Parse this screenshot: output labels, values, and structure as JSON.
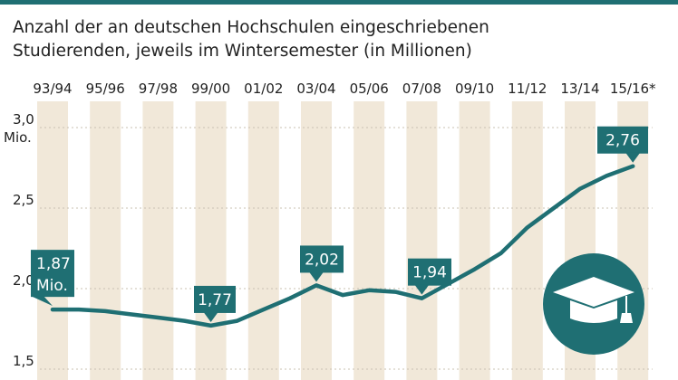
{
  "title_line1": "Anzahl der an deutschen Hochschulen eingeschriebenen",
  "title_line2": "Studierenden, jeweils im Wintersemester (in Millionen)",
  "colors": {
    "accent": "#1f6f73",
    "band": "#f1e8d9",
    "background": "#ffffff"
  },
  "icon": "graduation-cap-icon",
  "chart_data": {
    "type": "line",
    "x_tick_labels": [
      "93/94",
      "95/96",
      "97/98",
      "99/00",
      "01/02",
      "03/04",
      "05/06",
      "07/08",
      "09/10",
      "11/12",
      "13/14",
      "15/16*"
    ],
    "x": [
      "93/94",
      "94/95",
      "95/96",
      "96/97",
      "97/98",
      "98/99",
      "99/00",
      "00/01",
      "01/02",
      "02/03",
      "03/04",
      "04/05",
      "05/06",
      "06/07",
      "07/08",
      "08/09",
      "09/10",
      "10/11",
      "11/12",
      "12/13",
      "13/14",
      "14/15",
      "15/16*"
    ],
    "series": [
      {
        "values": [
          1.87,
          1.87,
          1.86,
          1.84,
          1.82,
          1.8,
          1.77,
          1.8,
          1.87,
          1.94,
          2.02,
          1.96,
          1.99,
          1.98,
          1.94,
          2.03,
          2.12,
          2.22,
          2.38,
          2.5,
          2.62,
          2.7,
          2.76
        ]
      }
    ],
    "y_ticks": [
      "1,5",
      "2,0",
      "2,5",
      "3,0"
    ],
    "y_unit": "Mio.",
    "ylim": [
      1.5,
      3.0
    ],
    "annotations": [
      {
        "x": "93/94",
        "value": 1.87,
        "text": "1,87",
        "text2": "Mio."
      },
      {
        "x": "99/00",
        "value": 1.77,
        "text": "1,77"
      },
      {
        "x": "03/04",
        "value": 2.02,
        "text": "2,02"
      },
      {
        "x": "07/08",
        "value": 1.94,
        "text": "1,94"
      },
      {
        "x": "15/16*",
        "value": 2.76,
        "text": "2,76"
      }
    ]
  }
}
